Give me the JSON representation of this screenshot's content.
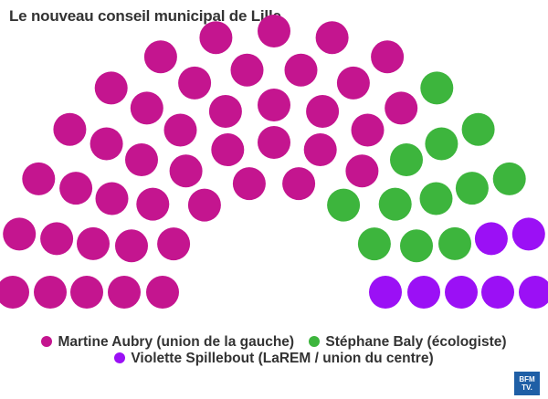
{
  "title": "Le nouveau conseil municipal de Lille",
  "chart_data": {
    "type": "hemicycle",
    "title": "Le nouveau conseil municipal de Lille",
    "total_seats": 61,
    "series": [
      {
        "name": "Martine Aubry (union de la gauche)",
        "seats": 42,
        "color": "#c4158f"
      },
      {
        "name": "Stéphane Baly (écologiste)",
        "seats": 12,
        "color": "#3db53d"
      },
      {
        "name": "Violette Spillebout (LaREM / union du centre)",
        "seats": 7,
        "color": "#9b10f5"
      }
    ],
    "legend": "bottom"
  },
  "logo": {
    "line1": "BFM",
    "line2": "TV."
  }
}
